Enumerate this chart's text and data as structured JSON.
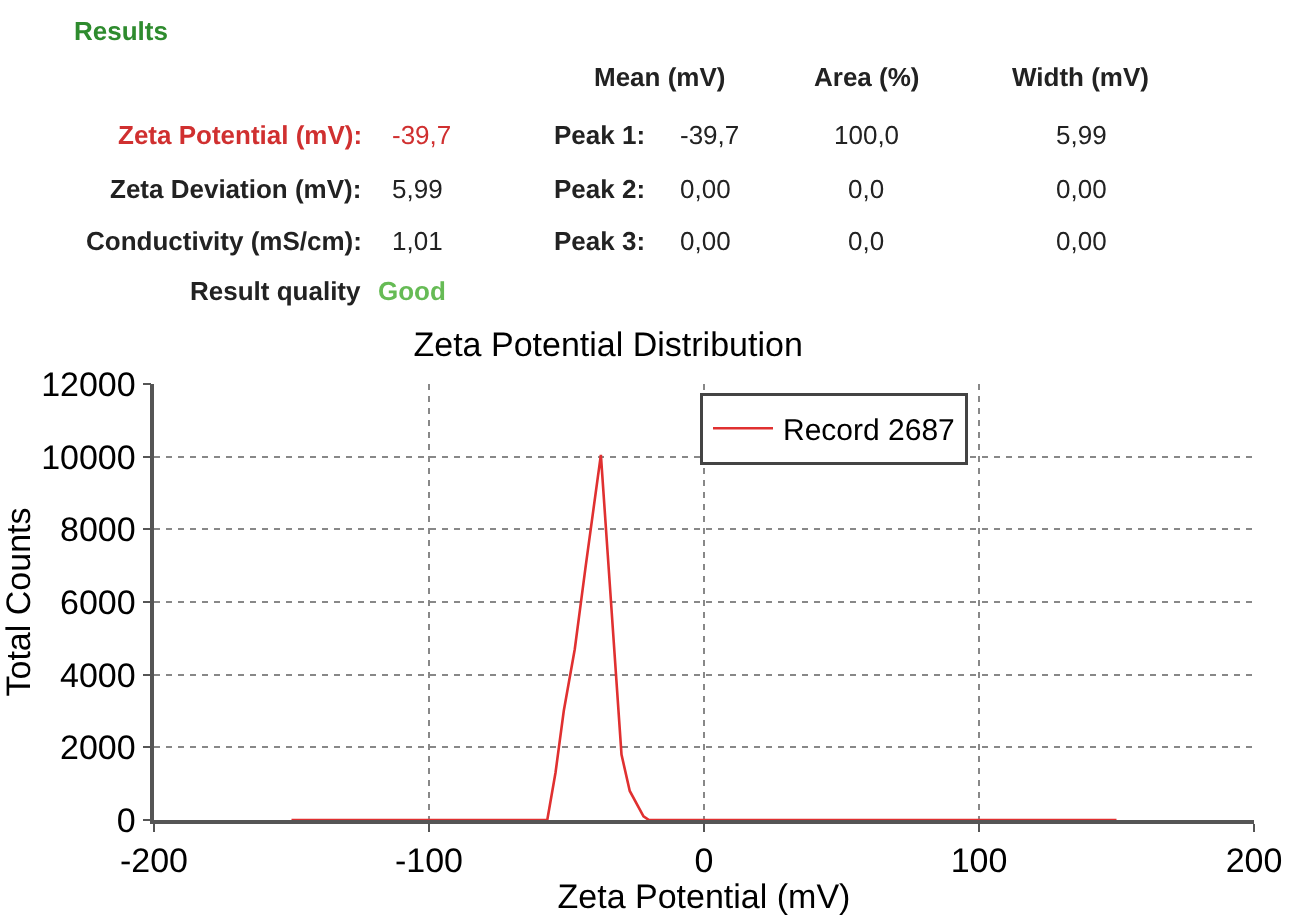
{
  "chart_data": {
    "type": "line",
    "title": "Zeta Potential Distribution",
    "xlabel": "Zeta Potential (mV)",
    "ylabel": "Total Counts",
    "x": [
      -150,
      -57,
      -54,
      -51,
      -47,
      -43,
      -37.5,
      -35,
      -32,
      -30,
      -27,
      -22,
      -20,
      150
    ],
    "series": [
      {
        "name": "Record 2687",
        "color": "#e03030",
        "values": [
          0,
          0,
          1300,
          3000,
          4700,
          7000,
          10050,
          7300,
          4000,
          1800,
          800,
          100,
          0,
          0
        ]
      }
    ],
    "xlim": [
      -200,
      200
    ],
    "xticks": [
      -200,
      -100,
      0,
      100,
      200
    ],
    "ylim": [
      0,
      12000
    ],
    "yticks": [
      0,
      2000,
      4000,
      6000,
      8000,
      10000,
      12000
    ],
    "grid": true,
    "legend": "top right",
    "marker": "none",
    "line_style": "solid",
    "annotations": [
      "Results",
      "Mean (mV)",
      "Area (%)",
      "Width (mV)",
      "Zeta Potential (mV):",
      "-39,7",
      "Peak 1:",
      "-39,7",
      "100,0",
      "5,99",
      "Zeta Deviation (mV):",
      "5,99",
      "Peak 2:",
      "0,00",
      "0,0",
      "0,00",
      "Conductivity (mS/cm):",
      "1,01",
      "Peak 3:",
      "0,00",
      "0,0",
      "0,00",
      "Result quality",
      "Good"
    ]
  }
}
